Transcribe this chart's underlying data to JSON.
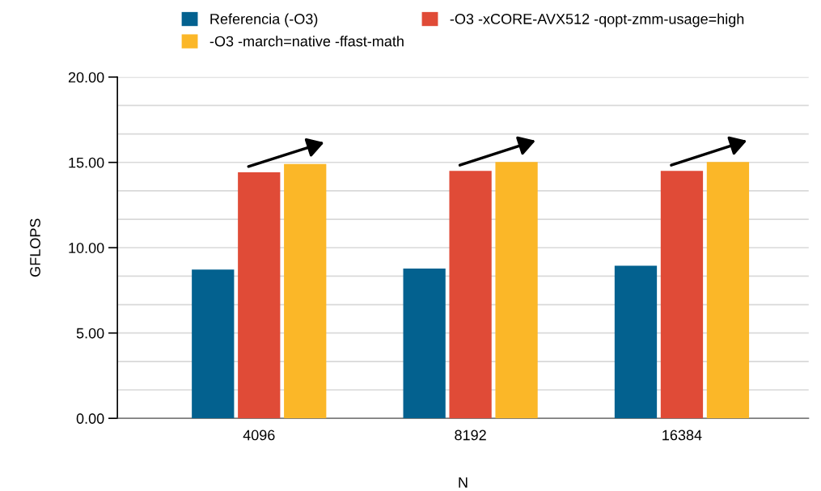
{
  "chart_data": {
    "type": "bar",
    "xlabel": "N",
    "ylabel": "GFLOPS",
    "categories": [
      "4096",
      "8192",
      "16384"
    ],
    "series": [
      {
        "name": "Referencia (-O3)",
        "color": "#03618f",
        "values": [
          8.72,
          8.78,
          8.94
        ]
      },
      {
        "name": "-O3 -xCORE-AVX512 -qopt-zmm-usage=high",
        "color": "#e04b37",
        "values": [
          14.42,
          14.5,
          14.5
        ]
      },
      {
        "name": "-O3 -march=native -ffast-math",
        "color": "#fbb728",
        "values": [
          14.91,
          15.02,
          15.02
        ]
      }
    ],
    "ylim": [
      0,
      20
    ],
    "yticks": [
      {
        "value": 0,
        "label": "0.00"
      },
      {
        "value": 5,
        "label": "5.00"
      },
      {
        "value": 10,
        "label": "10.00"
      },
      {
        "value": 15,
        "label": "15.00"
      },
      {
        "value": 20,
        "label": "20.00"
      }
    ],
    "grid": "y",
    "legend": "top"
  }
}
